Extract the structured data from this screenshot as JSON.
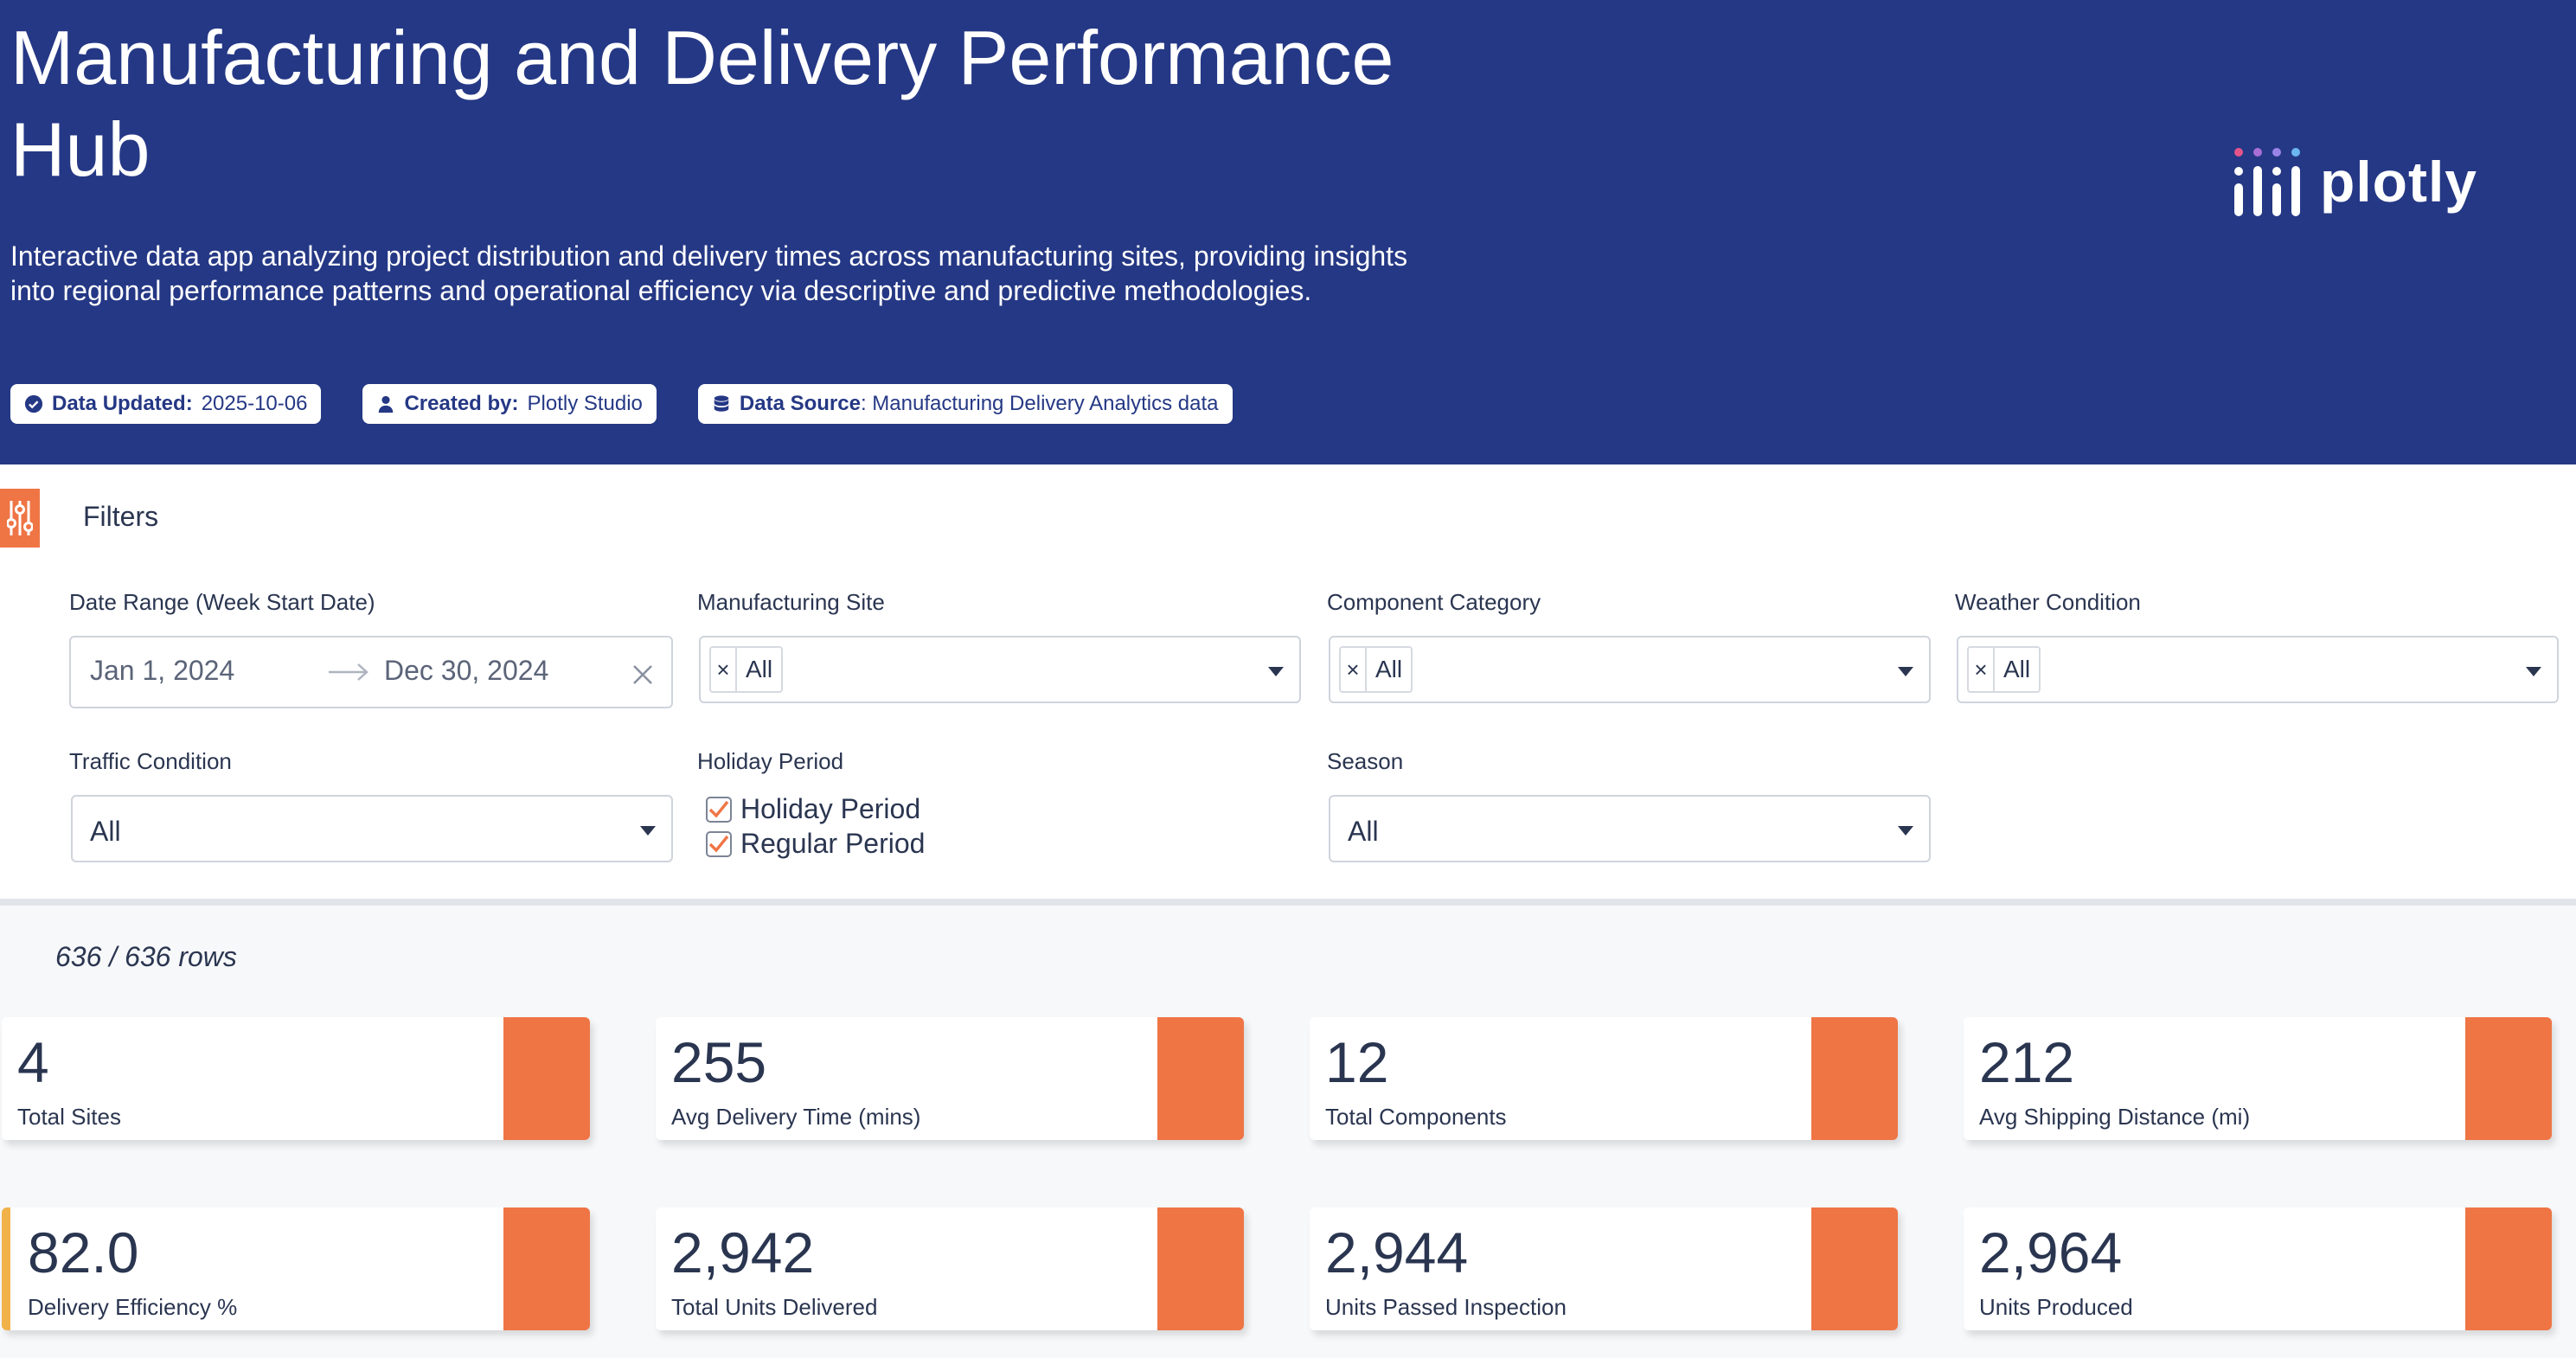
{
  "header": {
    "title": "Manufacturing and Delivery Performance Hub",
    "description": "Interactive data app analyzing project distribution and delivery times across manufacturing sites, providing insights into regional performance patterns and operational efficiency via descriptive and predictive methodologies.",
    "badges": [
      {
        "icon": "check-circle-icon",
        "label": "Data Updated:",
        "value": "2025-10-06"
      },
      {
        "icon": "user-icon",
        "label": "Created by:",
        "value": "Plotly Studio"
      },
      {
        "icon": "database-icon",
        "label": "Data Source",
        "value": ": Manufacturing Delivery Analytics data"
      }
    ],
    "logo_text": "plotly",
    "background_color": "#253885"
  },
  "filters": {
    "title": "Filters",
    "date_range": {
      "label": "Date Range (Week Start Date)",
      "start": "Jan 1, 2024",
      "end": "Dec 30, 2024"
    },
    "manufacturing_site": {
      "label": "Manufacturing Site",
      "value": "All"
    },
    "component_category": {
      "label": "Component Category",
      "value": "All"
    },
    "weather_condition": {
      "label": "Weather Condition",
      "value": "All"
    },
    "traffic_condition": {
      "label": "Traffic Condition",
      "value": "All"
    },
    "holiday_period": {
      "label": "Holiday Period",
      "options": [
        {
          "label": "Holiday Period",
          "checked": true
        },
        {
          "label": "Regular Period",
          "checked": true
        }
      ]
    },
    "season": {
      "label": "Season",
      "value": "All"
    }
  },
  "summary": {
    "rows": "636 / 636 rows"
  },
  "kpis": [
    {
      "value": "4",
      "label": "Total Sites"
    },
    {
      "value": "255",
      "label": "Avg Delivery Time (mins)"
    },
    {
      "value": "12",
      "label": "Total Components"
    },
    {
      "value": "212",
      "label": "Avg Shipping Distance (mi)"
    },
    {
      "value": "82.0",
      "label": "Delivery Efficiency %"
    },
    {
      "value": "2,942",
      "label": "Total Units Delivered"
    },
    {
      "value": "2,944",
      "label": "Units Passed Inspection"
    },
    {
      "value": "2,964",
      "label": "Units Produced"
    }
  ],
  "colors": {
    "accent": "#ef7545",
    "highlight": "#f1b24a"
  }
}
